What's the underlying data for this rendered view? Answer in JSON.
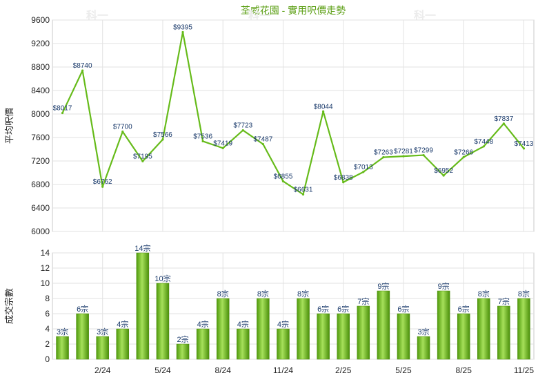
{
  "chart_data": [
    {
      "type": "line",
      "title": "荃威花園 - 實用呎價走勢",
      "ylabel": "平均呎價",
      "ylim": [
        6000,
        9600
      ],
      "yticks": [
        6000,
        6400,
        6800,
        7200,
        7600,
        8000,
        8400,
        8800,
        9200,
        9600
      ],
      "grid": true,
      "color": "#66bb1a",
      "values": [
        8017,
        8740,
        6762,
        7700,
        7195,
        7566,
        9395,
        7536,
        7419,
        7723,
        7487,
        6855,
        6631,
        8044,
        6838,
        7013,
        7263,
        7281,
        7299,
        6952,
        7266,
        7448,
        7837,
        7413
      ],
      "labels": [
        "$8017",
        "$8740",
        "$6762",
        "$7700",
        "$7195",
        "$7566",
        "$9395",
        "$7536",
        "$7419",
        "$7723",
        "$7487",
        "$6855",
        "$6631",
        "$8044",
        "$6838",
        "$7013",
        "$7263",
        "$7281",
        "$7299",
        "$6952",
        "$7266",
        "$7448",
        "$7837",
        "$7413"
      ]
    },
    {
      "type": "bar",
      "ylabel": "成交宗數",
      "ylim": [
        0,
        14
      ],
      "yticks": [
        0,
        2,
        4,
        6,
        8,
        10,
        12,
        14
      ],
      "grid": true,
      "color": "#66bb1a",
      "categories": [
        "",
        "",
        "2/24",
        "",
        "",
        "5/24",
        "",
        "",
        "8/24",
        "",
        "",
        "11/24",
        "",
        "",
        "2/25",
        "",
        "",
        "5/25",
        "",
        "",
        "8/25",
        "",
        "",
        "11/25"
      ],
      "values": [
        3,
        6,
        3,
        4,
        14,
        10,
        2,
        4,
        8,
        4,
        8,
        4,
        8,
        6,
        6,
        7,
        9,
        6,
        3,
        9,
        6,
        8,
        7,
        8
      ],
      "labels": [
        "3宗",
        "6宗",
        "3宗",
        "4宗",
        "14宗",
        "10宗",
        "2宗",
        "4宗",
        "8宗",
        "4宗",
        "8宗",
        "4宗",
        "8宗",
        "6宗",
        "6宗",
        "7宗",
        "9宗",
        "6宗",
        "3宗",
        "9宗",
        "6宗",
        "8宗",
        "7宗",
        "8宗"
      ]
    }
  ],
  "watermark": "科一"
}
